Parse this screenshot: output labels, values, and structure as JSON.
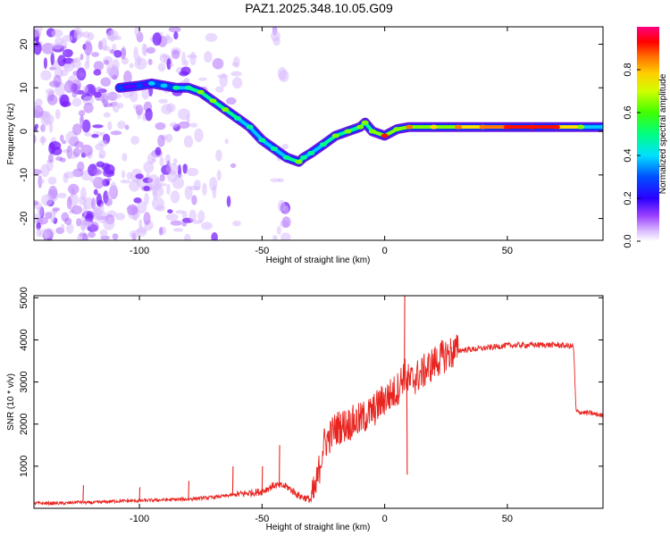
{
  "title": "PAZ1.2025.348.10.05.G09",
  "chart_data": [
    {
      "type": "heatmap",
      "xlabel": "Height of straight line (km)",
      "ylabel": "Frequency (Hz)",
      "xlim": [
        -143,
        89
      ],
      "ylim": [
        -25,
        24
      ],
      "xticks": [
        -100,
        -50,
        0,
        50
      ],
      "yticks": [
        -20,
        -10,
        0,
        10,
        20
      ],
      "xtick_labels": [
        "-100",
        "-50",
        "0",
        "50"
      ],
      "ytick_labels": [
        "-20",
        "-10",
        "0",
        "10",
        "20"
      ],
      "colorbar": {
        "label": "Normalized spectral amplitude",
        "range": [
          0,
          1
        ],
        "ticks": [
          0.0,
          0.2,
          0.4,
          0.6,
          0.8
        ],
        "tick_labels": [
          "0.0",
          "0.2",
          "0.4",
          "0.6",
          "0.8"
        ],
        "colors": [
          "#ffffff",
          "#c8a0ff",
          "#7a00ff",
          "#0000ff",
          "#00e5ff",
          "#00ff40",
          "#ffff00",
          "#ff8000",
          "#ff0000",
          "#ff0080"
        ]
      },
      "ridge": {
        "description": "dominant frequency track",
        "x": [
          -108,
          -100,
          -95,
          -90,
          -85,
          -80,
          -75,
          -70,
          -65,
          -60,
          -55,
          -50,
          -45,
          -40,
          -35,
          -33,
          -30,
          -25,
          -20,
          -15,
          -10,
          -8,
          -5,
          0,
          5,
          10,
          20,
          30,
          40,
          50,
          60,
          70,
          80,
          89
        ],
        "y": [
          10,
          10.5,
          11,
          10.5,
          10,
          10,
          9,
          7,
          5,
          3,
          1,
          -2,
          -4,
          -6,
          -7,
          -6,
          -5,
          -3,
          -1,
          0,
          1,
          2,
          0,
          -1,
          0.5,
          1,
          1,
          1,
          1,
          1,
          1,
          1,
          1,
          1
        ],
        "amplitude": [
          0.35,
          0.35,
          0.4,
          0.4,
          0.45,
          0.5,
          0.55,
          0.55,
          0.55,
          0.5,
          0.5,
          0.45,
          0.45,
          0.5,
          0.55,
          0.5,
          0.45,
          0.5,
          0.55,
          0.55,
          0.6,
          0.55,
          0.6,
          0.75,
          0.6,
          0.7,
          0.65,
          0.7,
          0.7,
          0.85,
          0.85,
          0.8,
          0.6,
          0.4
        ]
      }
    },
    {
      "type": "line",
      "xlabel": "Height of straight line (km)",
      "ylabel": "SNR (10 * v/v)",
      "xlim": [
        -143,
        89
      ],
      "ylim": [
        0,
        5050
      ],
      "xticks": [
        -100,
        -50,
        0,
        50
      ],
      "yticks": [
        1000,
        2000,
        3000,
        4000,
        5000
      ],
      "xtick_labels": [
        "-100",
        "-50",
        "0",
        "50"
      ],
      "ytick_labels": [
        "1000",
        "2000",
        "3000",
        "4000",
        "5000"
      ],
      "color": "#e8241f",
      "series": [
        {
          "name": "SNR",
          "x": [
            -143,
            -130,
            -125,
            -120,
            -110,
            -100,
            -90,
            -80,
            -70,
            -60,
            -50,
            -45,
            -40,
            -35,
            -30,
            -28,
            -25,
            -20,
            -15,
            -10,
            -5,
            0,
            5,
            8,
            10,
            15,
            20,
            25,
            30,
            40,
            50,
            60,
            70,
            76,
            77,
            78,
            80,
            85,
            89
          ],
          "y": [
            120,
            120,
            150,
            130,
            170,
            180,
            200,
            220,
            260,
            330,
            400,
            550,
            520,
            300,
            200,
            500,
            1500,
            1900,
            2000,
            2100,
            2300,
            2600,
            2800,
            3200,
            3000,
            3200,
            3450,
            3650,
            3750,
            3800,
            3870,
            3880,
            3880,
            3850,
            3850,
            2300,
            2280,
            2250,
            2200
          ]
        }
      ],
      "spikes": [
        {
          "x": -123,
          "y": 550
        },
        {
          "x": -100,
          "y": 500
        },
        {
          "x": -80,
          "y": 650
        },
        {
          "x": -62,
          "y": 1000
        },
        {
          "x": -50,
          "y": 1000
        },
        {
          "x": -43,
          "y": 1500
        },
        {
          "x": 8,
          "y": 5050
        },
        {
          "x": 9,
          "y": 800
        }
      ]
    }
  ]
}
